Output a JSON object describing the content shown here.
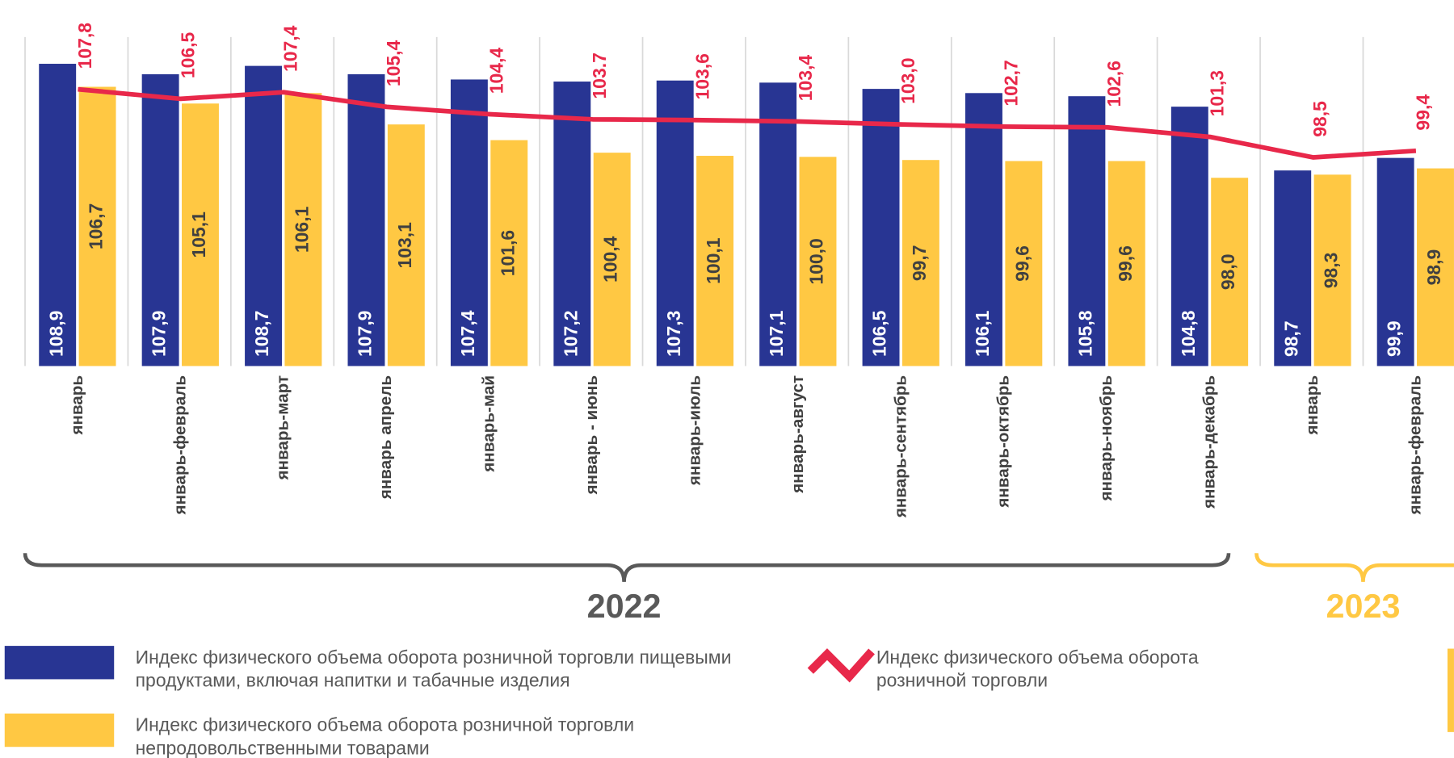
{
  "chart_data": {
    "type": "bar",
    "categories": [
      "январь",
      "январь-февраль",
      "январь-март",
      "январь апрель",
      "январь-май",
      "январь - июнь",
      "январь-июль",
      "январь-август",
      "январь-сентябрь",
      "январь-октябрь",
      "январь-ноябрь",
      "январь-декабрь",
      "январь",
      "январь-февраль"
    ],
    "groups": [
      "2022",
      "2023"
    ],
    "ylim": [
      80,
      115
    ],
    "y2lim": [
      70,
      120
    ],
    "series": [
      {
        "name": "Индекс физического объема оборота розничной торговли пищевыми продуктами, включая напитки и табачные изделия",
        "type": "bar",
        "color": "#283593",
        "values": [
          108.9,
          107.9,
          108.7,
          107.9,
          107.4,
          107.2,
          107.3,
          107.1,
          106.5,
          106.1,
          105.8,
          104.8,
          98.7,
          99.9
        ],
        "value_labels": [
          "108,9",
          "107,9",
          "108,7",
          "107,9",
          "107,4",
          "107,2",
          "107,3",
          "107,1",
          "106,5",
          "106,1",
          "105,8",
          "104,8",
          "98,7",
          "99,9"
        ]
      },
      {
        "name": "Индекс физического объема оборота розничной торговли непродовольственными товарами",
        "type": "bar",
        "color": "#ffc843",
        "values": [
          106.7,
          105.1,
          106.1,
          103.1,
          101.6,
          100.4,
          100.1,
          100.0,
          99.7,
          99.6,
          99.6,
          98.0,
          98.3,
          98.9
        ],
        "value_labels": [
          "106,7",
          "105,1",
          "106,1",
          "103,1",
          "101,6",
          "100,4",
          "100,1",
          "100,0",
          "99,7",
          "99,6",
          "99,6",
          "98,0",
          "98,3",
          "98,9"
        ]
      },
      {
        "name": "Индекс физического объема оборота розничной торговли",
        "type": "line",
        "axis": "y2",
        "color": "#e8284a",
        "values": [
          107.8,
          106.5,
          107.4,
          105.4,
          104.4,
          103.7,
          103.6,
          103.4,
          103.0,
          102.7,
          102.6,
          101.3,
          98.5,
          99.4
        ],
        "value_labels": [
          "107,8",
          "106,5",
          "107,4",
          "105,4",
          "104,4",
          "103.7",
          "103,6",
          "103,4",
          "103,0",
          "102,7",
          "102,6",
          "101,3",
          "98,5",
          "99,4"
        ]
      }
    ]
  }
}
